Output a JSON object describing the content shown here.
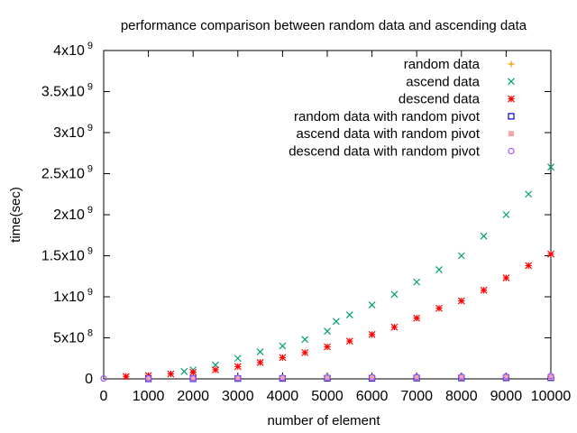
{
  "chart_data": {
    "type": "scatter",
    "title": "performance comparison between random data and ascending data",
    "xlabel": "number of element",
    "ylabel": "time(sec)",
    "xlim": [
      0,
      10000
    ],
    "ylim": [
      0,
      4000000000
    ],
    "grid": false,
    "legend_position": "top-right",
    "x_ticks": [
      "0",
      "1000",
      "2000",
      "3000",
      "4000",
      "5000",
      "6000",
      "7000",
      "8000",
      "9000",
      "10000"
    ],
    "y_ticks": [
      {
        "mant": "0",
        "exp": ""
      },
      {
        "mant": "5x10",
        "exp": "8"
      },
      {
        "mant": "1x10",
        "exp": "9"
      },
      {
        "mant": "1.5x10",
        "exp": "9"
      },
      {
        "mant": "2x10",
        "exp": "9"
      },
      {
        "mant": "2.5x10",
        "exp": "9"
      },
      {
        "mant": "3x10",
        "exp": "9"
      },
      {
        "mant": "3.5x10",
        "exp": "9"
      },
      {
        "mant": "4x10",
        "exp": "9"
      }
    ],
    "series": [
      {
        "name": "random data",
        "marker": "plus",
        "color": "#e69f00",
        "points": [
          [
            1000,
            2000000
          ],
          [
            2000,
            5000000
          ],
          [
            3000,
            9000000
          ],
          [
            4000,
            13000000
          ],
          [
            5000,
            17000000
          ],
          [
            6000,
            20000000
          ],
          [
            7000,
            24000000
          ],
          [
            8000,
            28000000
          ],
          [
            9000,
            31000000
          ],
          [
            10000,
            35000000
          ]
        ]
      },
      {
        "name": "ascend data",
        "marker": "cross",
        "color": "#009e73",
        "points": [
          [
            1800,
            90000000
          ],
          [
            2000,
            110000000
          ],
          [
            2500,
            170000000
          ],
          [
            3000,
            250000000
          ],
          [
            3500,
            330000000
          ],
          [
            4000,
            400000000
          ],
          [
            4500,
            480000000
          ],
          [
            5000,
            580000000
          ],
          [
            5200,
            700000000
          ],
          [
            5500,
            780000000
          ],
          [
            6000,
            900000000
          ],
          [
            6500,
            1030000000
          ],
          [
            7000,
            1180000000
          ],
          [
            7500,
            1330000000
          ],
          [
            8000,
            1500000000
          ],
          [
            8500,
            1740000000
          ],
          [
            9000,
            2000000000
          ],
          [
            9500,
            2250000000
          ],
          [
            10000,
            2580000000
          ]
        ]
      },
      {
        "name": "descend data",
        "marker": "star",
        "color": "#ff0000",
        "points": [
          [
            500,
            30000000
          ],
          [
            1000,
            40000000
          ],
          [
            1500,
            60000000
          ],
          [
            2000,
            80000000
          ],
          [
            2500,
            110000000
          ],
          [
            3000,
            150000000
          ],
          [
            3500,
            200000000
          ],
          [
            4000,
            260000000
          ],
          [
            4500,
            320000000
          ],
          [
            5000,
            390000000
          ],
          [
            5500,
            460000000
          ],
          [
            6000,
            540000000
          ],
          [
            6500,
            630000000
          ],
          [
            7000,
            740000000
          ],
          [
            7500,
            860000000
          ],
          [
            8000,
            950000000
          ],
          [
            8500,
            1080000000
          ],
          [
            9000,
            1230000000
          ],
          [
            9500,
            1380000000
          ],
          [
            10000,
            1520000000
          ]
        ]
      },
      {
        "name": "random data with random pivot",
        "marker": "square",
        "color": "#0000cc",
        "points": [
          [
            1000,
            1000000
          ],
          [
            2000,
            2000000
          ],
          [
            3000,
            4000000
          ],
          [
            4000,
            5000000
          ],
          [
            5000,
            7000000
          ],
          [
            6000,
            8000000
          ],
          [
            7000,
            10000000
          ],
          [
            8000,
            11000000
          ],
          [
            9000,
            13000000
          ],
          [
            10000,
            14000000
          ]
        ]
      },
      {
        "name": "ascend data with random pivot",
        "marker": "filled-square",
        "color": "#f4a6a6",
        "points": [
          [
            1000,
            2000000
          ],
          [
            2000,
            3000000
          ],
          [
            3000,
            5000000
          ],
          [
            4000,
            7000000
          ],
          [
            5000,
            9000000
          ],
          [
            6000,
            11000000
          ],
          [
            7000,
            13000000
          ],
          [
            8000,
            15000000
          ],
          [
            9000,
            17000000
          ],
          [
            10000,
            19000000
          ]
        ]
      },
      {
        "name": "descend data with random pivot",
        "marker": "circle",
        "color": "#9b59ff",
        "points": [
          [
            0,
            5000000
          ],
          [
            1000,
            7000000
          ],
          [
            2000,
            9000000
          ],
          [
            3000,
            11000000
          ],
          [
            4000,
            14000000
          ],
          [
            5000,
            17000000
          ],
          [
            6000,
            20000000
          ],
          [
            7000,
            23000000
          ],
          [
            8000,
            26000000
          ],
          [
            9000,
            30000000
          ],
          [
            10000,
            36000000
          ]
        ]
      }
    ]
  }
}
